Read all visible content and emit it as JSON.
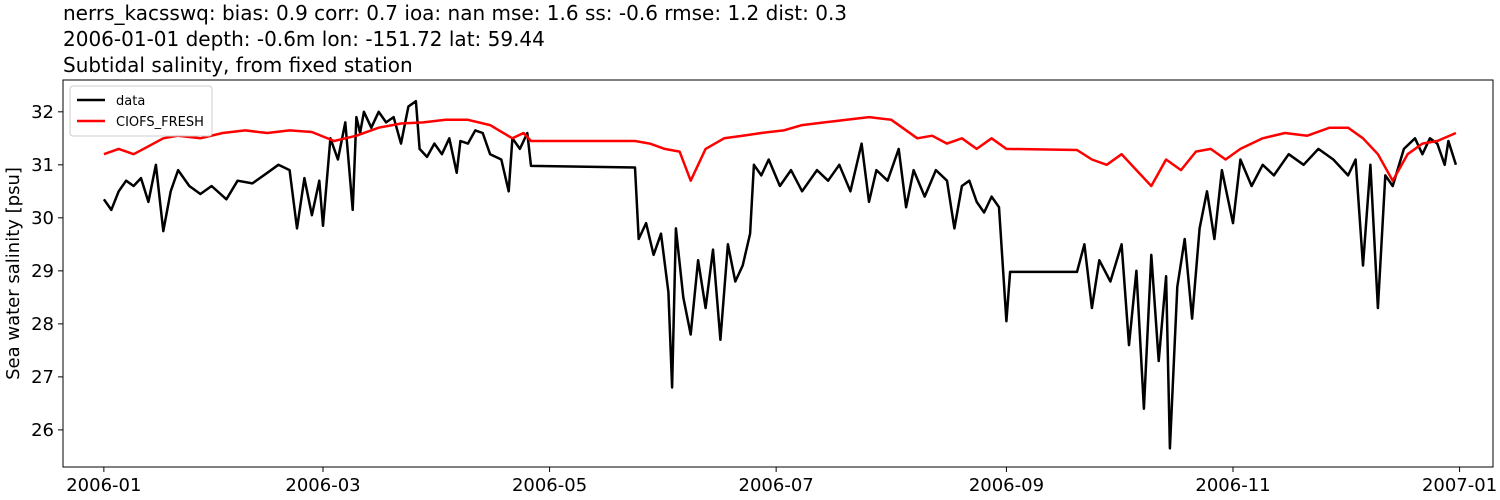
{
  "chart_data": {
    "type": "line",
    "title": [
      "nerrs_kacsswq: bias: 0.9  corr: 0.7  ioa: nan  mse: 1.6  ss: -0.6  rmse: 1.2  dist: 0.3",
      "2006-01-01 depth: -0.6m lon: -151.72 lat: 59.44",
      "Subtidal salinity, from fixed station"
    ],
    "xlabel": "",
    "ylabel": "Sea water salinity [psu]",
    "xlim": [
      "2005-12-21",
      "2007-01-10"
    ],
    "ylim": [
      25.3,
      32.6
    ],
    "x_ticks": [
      "2006-01",
      "2006-03",
      "2006-05",
      "2006-07",
      "2006-09",
      "2006-11",
      "2007-01"
    ],
    "y_ticks": [
      26,
      27,
      28,
      29,
      30,
      31,
      32
    ],
    "grid": false,
    "legend_position": "upper-left",
    "series": [
      {
        "name": "data",
        "color": "#000000",
        "points": [
          [
            "2006-01-01",
            30.35
          ],
          [
            "2006-01-03",
            30.15
          ],
          [
            "2006-01-05",
            30.5
          ],
          [
            "2006-01-07",
            30.7
          ],
          [
            "2006-01-09",
            30.6
          ],
          [
            "2006-01-11",
            30.75
          ],
          [
            "2006-01-13",
            30.3
          ],
          [
            "2006-01-15",
            31.0
          ],
          [
            "2006-01-17",
            29.75
          ],
          [
            "2006-01-19",
            30.5
          ],
          [
            "2006-01-21",
            30.9
          ],
          [
            "2006-01-24",
            30.6
          ],
          [
            "2006-01-27",
            30.45
          ],
          [
            "2006-01-30",
            30.6
          ],
          [
            "2006-02-03",
            30.35
          ],
          [
            "2006-02-06",
            30.7
          ],
          [
            "2006-02-10",
            30.65
          ],
          [
            "2006-02-14",
            30.85
          ],
          [
            "2006-02-17",
            31.0
          ],
          [
            "2006-02-20",
            30.9
          ],
          [
            "2006-02-22",
            29.8
          ],
          [
            "2006-02-24",
            30.75
          ],
          [
            "2006-02-26",
            30.05
          ],
          [
            "2006-02-28",
            30.7
          ],
          [
            "2006-03-01",
            29.85
          ],
          [
            "2006-03-03",
            31.5
          ],
          [
            "2006-03-05",
            31.1
          ],
          [
            "2006-03-07",
            31.8
          ],
          [
            "2006-03-09",
            30.15
          ],
          [
            "2006-03-10",
            31.9
          ],
          [
            "2006-03-11",
            31.6
          ],
          [
            "2006-03-12",
            32.0
          ],
          [
            "2006-03-14",
            31.7
          ],
          [
            "2006-03-16",
            32.0
          ],
          [
            "2006-03-18",
            31.8
          ],
          [
            "2006-03-20",
            31.9
          ],
          [
            "2006-03-22",
            31.4
          ],
          [
            "2006-03-24",
            32.1
          ],
          [
            "2006-03-26",
            32.2
          ],
          [
            "2006-03-27",
            31.3
          ],
          [
            "2006-03-29",
            31.15
          ],
          [
            "2006-03-31",
            31.4
          ],
          [
            "2006-04-02",
            31.2
          ],
          [
            "2006-04-04",
            31.5
          ],
          [
            "2006-04-06",
            30.85
          ],
          [
            "2006-04-07",
            31.45
          ],
          [
            "2006-04-09",
            31.4
          ],
          [
            "2006-04-11",
            31.65
          ],
          [
            "2006-04-13",
            31.6
          ],
          [
            "2006-04-15",
            31.2
          ],
          [
            "2006-04-18",
            31.1
          ],
          [
            "2006-04-20",
            30.5
          ],
          [
            "2006-04-21",
            31.5
          ],
          [
            "2006-04-23",
            31.3
          ],
          [
            "2006-04-25",
            31.6
          ],
          [
            "2006-04-26",
            30.98
          ],
          [
            "2006-05-24",
            30.95
          ],
          [
            "2006-05-25",
            29.6
          ],
          [
            "2006-05-27",
            29.9
          ],
          [
            "2006-05-29",
            29.3
          ],
          [
            "2006-05-31",
            29.7
          ],
          [
            "2006-06-02",
            28.6
          ],
          [
            "2006-06-03",
            26.8
          ],
          [
            "2006-06-04",
            29.8
          ],
          [
            "2006-06-06",
            28.5
          ],
          [
            "2006-06-08",
            27.8
          ],
          [
            "2006-06-10",
            29.2
          ],
          [
            "2006-06-12",
            28.3
          ],
          [
            "2006-06-14",
            29.4
          ],
          [
            "2006-06-16",
            27.7
          ],
          [
            "2006-06-18",
            29.5
          ],
          [
            "2006-06-20",
            28.8
          ],
          [
            "2006-06-22",
            29.1
          ],
          [
            "2006-06-24",
            29.7
          ],
          [
            "2006-06-25",
            31.0
          ],
          [
            "2006-06-27",
            30.8
          ],
          [
            "2006-06-29",
            31.1
          ],
          [
            "2006-07-02",
            30.6
          ],
          [
            "2006-07-05",
            30.9
          ],
          [
            "2006-07-08",
            30.5
          ],
          [
            "2006-07-12",
            30.9
          ],
          [
            "2006-07-15",
            30.7
          ],
          [
            "2006-07-18",
            31.0
          ],
          [
            "2006-07-21",
            30.5
          ],
          [
            "2006-07-24",
            31.4
          ],
          [
            "2006-07-26",
            30.3
          ],
          [
            "2006-07-28",
            30.9
          ],
          [
            "2006-07-31",
            30.7
          ],
          [
            "2006-08-03",
            31.3
          ],
          [
            "2006-08-05",
            30.2
          ],
          [
            "2006-08-07",
            30.9
          ],
          [
            "2006-08-10",
            30.4
          ],
          [
            "2006-08-13",
            30.9
          ],
          [
            "2006-08-16",
            30.7
          ],
          [
            "2006-08-18",
            29.8
          ],
          [
            "2006-08-20",
            30.6
          ],
          [
            "2006-08-22",
            30.7
          ],
          [
            "2006-08-24",
            30.3
          ],
          [
            "2006-08-26",
            30.1
          ],
          [
            "2006-08-28",
            30.4
          ],
          [
            "2006-08-30",
            30.2
          ],
          [
            "2006-09-01",
            28.05
          ],
          [
            "2006-09-02",
            28.98
          ],
          [
            "2006-09-20",
            28.98
          ],
          [
            "2006-09-22",
            29.5
          ],
          [
            "2006-09-24",
            28.3
          ],
          [
            "2006-09-26",
            29.2
          ],
          [
            "2006-09-29",
            28.8
          ],
          [
            "2006-10-02",
            29.5
          ],
          [
            "2006-10-04",
            27.6
          ],
          [
            "2006-10-06",
            29.0
          ],
          [
            "2006-10-08",
            26.4
          ],
          [
            "2006-10-10",
            29.3
          ],
          [
            "2006-10-12",
            27.3
          ],
          [
            "2006-10-14",
            28.9
          ],
          [
            "2006-10-15",
            25.65
          ],
          [
            "2006-10-17",
            28.7
          ],
          [
            "2006-10-19",
            29.6
          ],
          [
            "2006-10-21",
            28.1
          ],
          [
            "2006-10-23",
            29.8
          ],
          [
            "2006-10-25",
            30.5
          ],
          [
            "2006-10-27",
            29.6
          ],
          [
            "2006-10-29",
            30.9
          ],
          [
            "2006-11-01",
            29.9
          ],
          [
            "2006-11-03",
            31.1
          ],
          [
            "2006-11-06",
            30.6
          ],
          [
            "2006-11-09",
            31.0
          ],
          [
            "2006-11-12",
            30.8
          ],
          [
            "2006-11-16",
            31.2
          ],
          [
            "2006-11-20",
            31.0
          ],
          [
            "2006-11-24",
            31.3
          ],
          [
            "2006-11-28",
            31.1
          ],
          [
            "2006-12-02",
            30.8
          ],
          [
            "2006-12-04",
            31.1
          ],
          [
            "2006-12-06",
            29.1
          ],
          [
            "2006-12-08",
            31.0
          ],
          [
            "2006-12-10",
            28.3
          ],
          [
            "2006-12-12",
            30.8
          ],
          [
            "2006-12-14",
            30.6
          ],
          [
            "2006-12-17",
            31.3
          ],
          [
            "2006-12-20",
            31.5
          ],
          [
            "2006-12-22",
            31.2
          ],
          [
            "2006-12-24",
            31.5
          ],
          [
            "2006-12-26",
            31.4
          ],
          [
            "2006-12-28",
            31.0
          ],
          [
            "2006-12-29",
            31.45
          ],
          [
            "2006-12-31",
            31.0
          ]
        ]
      },
      {
        "name": "CIOFS_FRESH",
        "color": "#ff0000",
        "points": [
          [
            "2006-01-01",
            31.2
          ],
          [
            "2006-01-05",
            31.3
          ],
          [
            "2006-01-09",
            31.2
          ],
          [
            "2006-01-13",
            31.35
          ],
          [
            "2006-01-17",
            31.5
          ],
          [
            "2006-01-21",
            31.55
          ],
          [
            "2006-01-27",
            31.5
          ],
          [
            "2006-02-02",
            31.6
          ],
          [
            "2006-02-08",
            31.65
          ],
          [
            "2006-02-14",
            31.6
          ],
          [
            "2006-02-20",
            31.65
          ],
          [
            "2006-02-26",
            31.62
          ],
          [
            "2006-03-04",
            31.45
          ],
          [
            "2006-03-10",
            31.55
          ],
          [
            "2006-03-16",
            31.7
          ],
          [
            "2006-03-22",
            31.78
          ],
          [
            "2006-03-28",
            31.8
          ],
          [
            "2006-04-03",
            31.85
          ],
          [
            "2006-04-09",
            31.85
          ],
          [
            "2006-04-15",
            31.75
          ],
          [
            "2006-04-21",
            31.5
          ],
          [
            "2006-04-24",
            31.6
          ],
          [
            "2006-04-26",
            31.45
          ],
          [
            "2006-05-24",
            31.45
          ],
          [
            "2006-05-28",
            31.4
          ],
          [
            "2006-06-01",
            31.3
          ],
          [
            "2006-06-05",
            31.25
          ],
          [
            "2006-06-08",
            30.7
          ],
          [
            "2006-06-12",
            31.3
          ],
          [
            "2006-06-17",
            31.5
          ],
          [
            "2006-06-22",
            31.55
          ],
          [
            "2006-06-27",
            31.6
          ],
          [
            "2006-07-03",
            31.65
          ],
          [
            "2006-07-08",
            31.75
          ],
          [
            "2006-07-14",
            31.8
          ],
          [
            "2006-07-20",
            31.85
          ],
          [
            "2006-07-26",
            31.9
          ],
          [
            "2006-08-01",
            31.85
          ],
          [
            "2006-08-04",
            31.7
          ],
          [
            "2006-08-08",
            31.5
          ],
          [
            "2006-08-12",
            31.55
          ],
          [
            "2006-08-16",
            31.4
          ],
          [
            "2006-08-20",
            31.5
          ],
          [
            "2006-08-24",
            31.3
          ],
          [
            "2006-08-28",
            31.5
          ],
          [
            "2006-09-01",
            31.3
          ],
          [
            "2006-09-20",
            31.28
          ],
          [
            "2006-09-24",
            31.1
          ],
          [
            "2006-09-28",
            31.0
          ],
          [
            "2006-10-02",
            31.2
          ],
          [
            "2006-10-06",
            30.9
          ],
          [
            "2006-10-10",
            30.6
          ],
          [
            "2006-10-14",
            31.1
          ],
          [
            "2006-10-18",
            30.9
          ],
          [
            "2006-10-22",
            31.25
          ],
          [
            "2006-10-26",
            31.3
          ],
          [
            "2006-10-30",
            31.1
          ],
          [
            "2006-11-03",
            31.3
          ],
          [
            "2006-11-09",
            31.5
          ],
          [
            "2006-11-15",
            31.6
          ],
          [
            "2006-11-21",
            31.55
          ],
          [
            "2006-11-27",
            31.7
          ],
          [
            "2006-12-02",
            31.7
          ],
          [
            "2006-12-06",
            31.5
          ],
          [
            "2006-12-10",
            31.2
          ],
          [
            "2006-12-14",
            30.7
          ],
          [
            "2006-12-18",
            31.2
          ],
          [
            "2006-12-22",
            31.4
          ],
          [
            "2006-12-26",
            31.45
          ],
          [
            "2006-12-31",
            31.6
          ]
        ]
      }
    ]
  }
}
